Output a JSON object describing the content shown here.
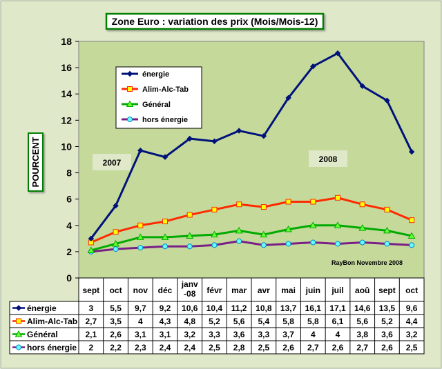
{
  "title": "Zone Euro : variation des prix (Mois/Mois-12)",
  "ylabel": "POURCENT",
  "annotations": {
    "label_2007": "2007",
    "label_2008": "2008",
    "credit": "RayBon Novembre 2008"
  },
  "colors": {
    "page_bg": "#dfe8c8",
    "plot_bg": "#c5d99a",
    "title_border": "#008000",
    "energie": "#00127a",
    "alim": "#ff2a00",
    "general": "#00aa00",
    "hors": "#7a1f87",
    "alim_marker": "#ffff00",
    "general_marker": "#66ff33",
    "hors_marker": "#66ffff"
  },
  "chart_data": {
    "type": "line",
    "title": "Zone Euro : variation des prix (Mois/Mois-12)",
    "xlabel": "",
    "ylabel": "POURCENT",
    "ylim": [
      0,
      18
    ],
    "yticks": [
      0,
      2,
      4,
      6,
      8,
      10,
      12,
      14,
      16,
      18
    ],
    "grid": false,
    "legend_position": "top-left",
    "categories": [
      "sept",
      "oct",
      "nov",
      "déc",
      "janv -08",
      "févr",
      "mar",
      "avr",
      "mai",
      "juin",
      "juil",
      "aoû",
      "sept",
      "oct"
    ],
    "series": [
      {
        "name": "énergie",
        "key": "energie",
        "marker": "diamond",
        "values": [
          3,
          5.5,
          9.7,
          9.2,
          10.6,
          10.4,
          11.2,
          10.8,
          13.7,
          16.1,
          17.1,
          14.6,
          13.5,
          9.6
        ],
        "labels": [
          "3",
          "5,5",
          "9,7",
          "9,2",
          "10,6",
          "10,4",
          "11,2",
          "10,8",
          "13,7",
          "16,1",
          "17,1",
          "14,6",
          "13,5",
          "9,6"
        ]
      },
      {
        "name": "Alim-Alc-Tab",
        "key": "alim",
        "marker": "square",
        "values": [
          2.7,
          3.5,
          4,
          4.3,
          4.8,
          5.2,
          5.6,
          5.4,
          5.8,
          5.8,
          6.1,
          5.6,
          5.2,
          4.4
        ],
        "labels": [
          "2,7",
          "3,5",
          "4",
          "4,3",
          "4,8",
          "5,2",
          "5,6",
          "5,4",
          "5,8",
          "5,8",
          "6,1",
          "5,6",
          "5,2",
          "4,4"
        ]
      },
      {
        "name": "Général",
        "key": "general",
        "marker": "triangle",
        "values": [
          2.1,
          2.6,
          3.1,
          3.1,
          3.2,
          3.3,
          3.6,
          3.3,
          3.7,
          4,
          4,
          3.8,
          3.6,
          3.2
        ],
        "labels": [
          "2,1",
          "2,6",
          "3,1",
          "3,1",
          "3,2",
          "3,3",
          "3,6",
          "3,3",
          "3,7",
          "4",
          "4",
          "3,8",
          "3,6",
          "3,2"
        ]
      },
      {
        "name": "hors énergie",
        "key": "hors",
        "marker": "circle",
        "values": [
          2,
          2.2,
          2.3,
          2.4,
          2.4,
          2.5,
          2.8,
          2.5,
          2.6,
          2.7,
          2.6,
          2.7,
          2.6,
          2.5
        ],
        "labels": [
          "2",
          "2,2",
          "2,3",
          "2,4",
          "2,4",
          "2,5",
          "2,8",
          "2,5",
          "2,6",
          "2,7",
          "2,6",
          "2,7",
          "2,6",
          "2,5"
        ]
      }
    ]
  }
}
